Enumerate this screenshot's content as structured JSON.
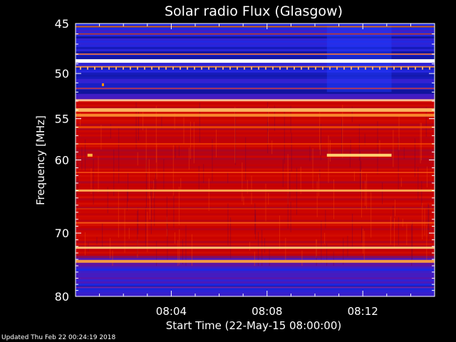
{
  "chart_data": {
    "type": "heatmap",
    "title": "Solar radio Flux (Glasgow)",
    "ylabel": "Frequency [MHz]",
    "xlabel": "Start Time (22-May-15 08:00:00)",
    "y_scale": "log",
    "ylim": [
      45,
      80
    ],
    "y_ticks": [
      45,
      50,
      55,
      60,
      70,
      80
    ],
    "x_range_minutes": [
      0,
      15
    ],
    "x_ticks": [
      {
        "minute": 4,
        "label": "08:04"
      },
      {
        "minute": 8,
        "label": "08:08"
      },
      {
        "minute": 12,
        "label": "08:12"
      }
    ],
    "colors": {
      "background": "#000000",
      "low": "#1010e0",
      "mid": "#c00000",
      "high": "#ffffff"
    },
    "features": [
      {
        "label": "strong interference band",
        "mhz": 48.7,
        "level": "high"
      },
      {
        "label": "bright band",
        "mhz": 54.2,
        "level": "high"
      },
      {
        "label": "burst segment",
        "mhz": 59.4,
        "start_minute": 10.5,
        "end_minute": 13.2,
        "level": "high"
      }
    ]
  },
  "footer": {
    "updated": "Updated Thu Feb 22 00:24:19 2018"
  }
}
